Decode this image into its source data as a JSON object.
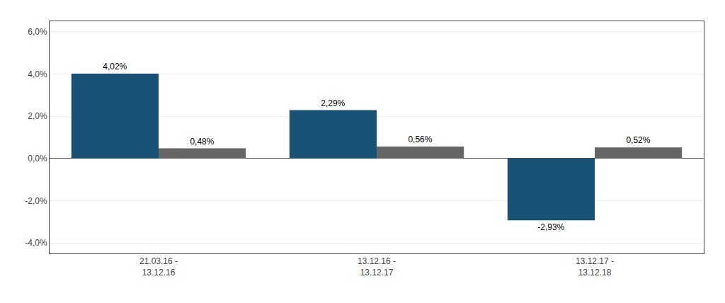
{
  "chart_data": {
    "type": "bar",
    "categories": [
      "21.03.16 -\n13.12.16",
      "13.12.16 -\n13.12.17",
      "13.12.17 -\n13.12.18"
    ],
    "series": [
      {
        "color": "#1A5276",
        "values": [
          4.02,
          2.29,
          -2.93
        ],
        "value_labels": [
          "4,02%",
          "2,29%",
          "-2,93%"
        ]
      },
      {
        "color": "#666666",
        "values": [
          0.48,
          0.56,
          0.52
        ],
        "value_labels": [
          "0,48%",
          "0,56%",
          "0,52%"
        ]
      }
    ],
    "ylim": [
      -4.5,
      6.5
    ],
    "yticks": [
      {
        "value": -4.0,
        "label": "-4,0%"
      },
      {
        "value": -2.0,
        "label": "-2,0%"
      },
      {
        "value": 0.0,
        "label": "0,0%"
      },
      {
        "value": 2.0,
        "label": "2,0%"
      },
      {
        "value": 4.0,
        "label": "4,0%"
      },
      {
        "value": 6.0,
        "label": "6,0%"
      }
    ],
    "grid": true,
    "data_labels": true
  }
}
